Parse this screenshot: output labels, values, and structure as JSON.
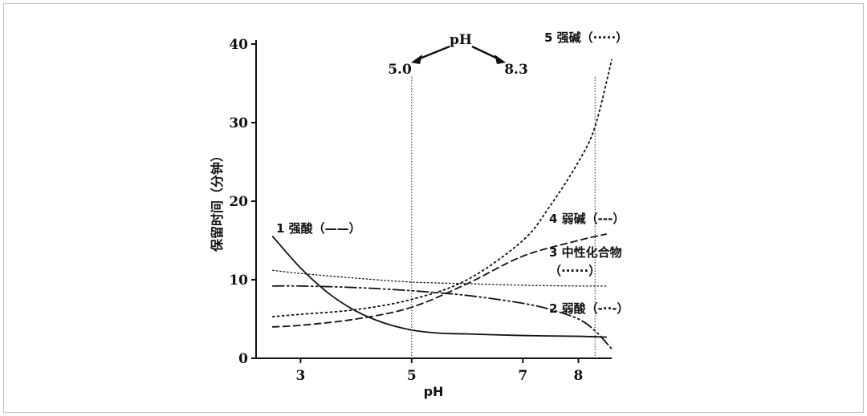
{
  "chart_data": {
    "type": "line",
    "xlabel": "pH",
    "ylabel": "保留时间（分钟）",
    "xlim": [
      2.2,
      8.6
    ],
    "ylim": [
      0,
      40
    ],
    "x_ticks": [
      "3",
      "5",
      "7",
      "8"
    ],
    "x_tick_values": [
      3,
      5,
      7,
      8
    ],
    "y_ticks": [
      "0",
      "10",
      "20",
      "30",
      "40"
    ],
    "y_tick_values": [
      0,
      10,
      20,
      30,
      40
    ],
    "grid": false,
    "reference_lines": [
      {
        "x": 5.0,
        "label": "5.0"
      },
      {
        "x": 8.3,
        "label": "8.3"
      }
    ],
    "reference_title": "pH",
    "series": [
      {
        "name": "1 强酸（——）",
        "style": "solid",
        "x": [
          2.5,
          3.0,
          3.5,
          4.0,
          4.5,
          5.0,
          5.5,
          6.0,
          7.0,
          8.0,
          8.5
        ],
        "y": [
          15.5,
          11.5,
          8.3,
          6.0,
          4.5,
          3.6,
          3.2,
          3.1,
          2.9,
          2.8,
          2.7
        ]
      },
      {
        "name": "2 弱酸（-··-）",
        "style": "dashdotdot",
        "x": [
          2.5,
          3.0,
          4.0,
          5.0,
          6.0,
          7.0,
          7.5,
          8.0,
          8.3,
          8.6
        ],
        "y": [
          9.2,
          9.2,
          9.0,
          8.6,
          8.0,
          7.0,
          6.2,
          5.0,
          3.5,
          1.2
        ]
      },
      {
        "name": "3 中性化合物（······）",
        "style": "dotted",
        "x": [
          2.5,
          3.0,
          4.0,
          5.0,
          6.0,
          7.0,
          8.0,
          8.5
        ],
        "y": [
          11.2,
          10.8,
          10.2,
          9.7,
          9.5,
          9.3,
          9.2,
          9.2
        ]
      },
      {
        "name": "4 弱碱（---）",
        "style": "dashed",
        "x": [
          2.5,
          3.0,
          4.0,
          5.0,
          6.0,
          7.0,
          8.0,
          8.5
        ],
        "y": [
          4.0,
          4.2,
          5.0,
          6.5,
          9.5,
          13.0,
          15.0,
          15.8
        ]
      },
      {
        "name": "5 强碱（·····）",
        "style": "dotted",
        "x": [
          2.5,
          3.0,
          4.0,
          5.0,
          6.0,
          7.0,
          7.5,
          8.0,
          8.3,
          8.6
        ],
        "y": [
          5.3,
          5.6,
          6.2,
          7.5,
          10.0,
          15.0,
          19.5,
          25.0,
          29.5,
          38.0
        ]
      }
    ],
    "labels": {
      "s1": "1 强酸（——）",
      "s2": "2 弱酸（-··-）",
      "s3a": "3 中性化合物",
      "s3b": "（······）",
      "s4": "4 弱碱（---）",
      "s5": "5 强碱（·····）"
    }
  }
}
